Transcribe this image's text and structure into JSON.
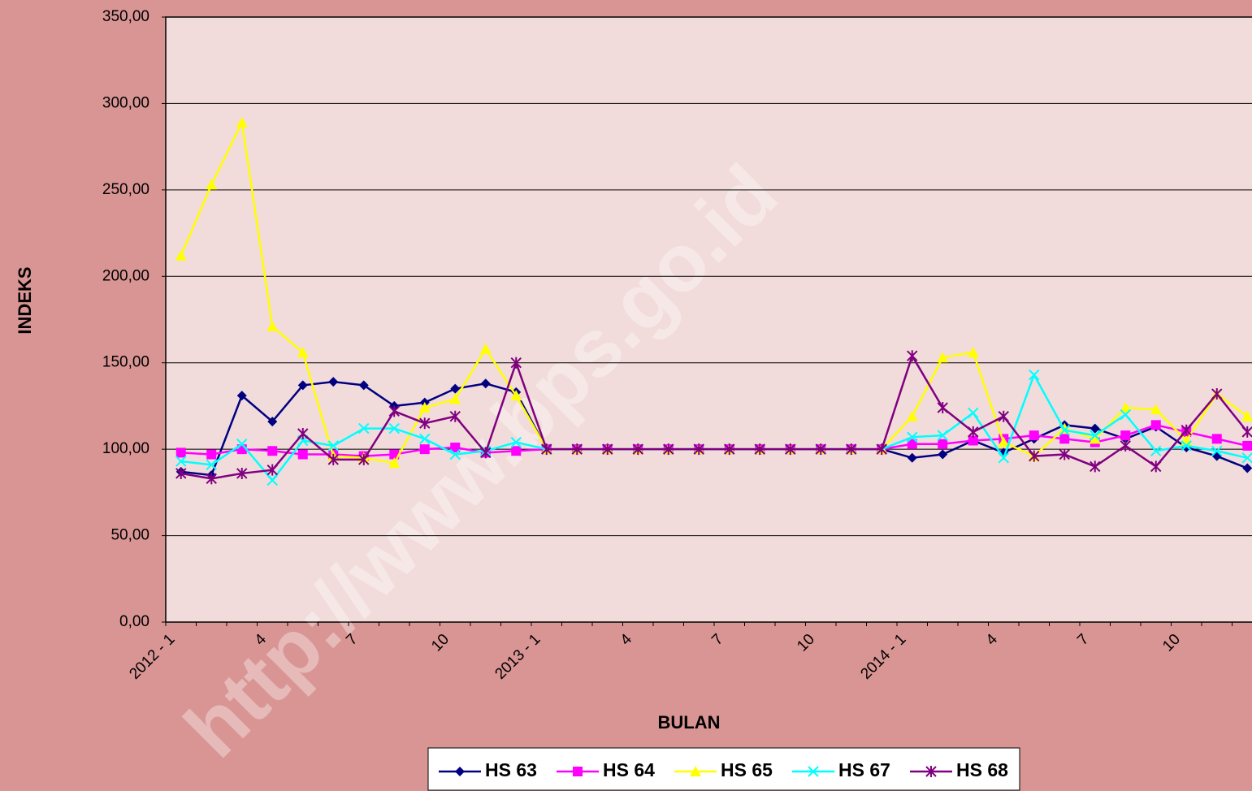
{
  "chart_data": {
    "type": "line",
    "x_label": "BULAN",
    "y_label": "INDEKS",
    "watermark": "http://www.bps.go.id",
    "categories": [
      "2012 - 1",
      null,
      null,
      "4",
      null,
      null,
      "7",
      null,
      null,
      "10",
      null,
      null,
      "2013 - 1",
      null,
      null,
      "4",
      null,
      null,
      "7",
      null,
      null,
      "10",
      null,
      null,
      "2014 - 1",
      null,
      null,
      "4",
      null,
      null,
      "7",
      null,
      null,
      "10",
      null,
      null
    ],
    "ylim": [
      0,
      350
    ],
    "yticks": [
      {
        "value": 0,
        "label": "0,00"
      },
      {
        "value": 50,
        "label": "50,00"
      },
      {
        "value": 100,
        "label": "100,00"
      },
      {
        "value": 150,
        "label": "150,00"
      },
      {
        "value": 200,
        "label": "200,00"
      },
      {
        "value": 250,
        "label": "250,00"
      },
      {
        "value": 300,
        "label": "300,00"
      },
      {
        "value": 350,
        "label": "350,00"
      }
    ],
    "grid": true,
    "legend": "bottom",
    "series": [
      {
        "name": "HS 63",
        "color": "#000080",
        "marker": "diamond",
        "values": [
          87,
          85,
          131,
          116,
          137,
          139,
          137,
          125,
          127,
          135,
          138,
          133,
          100,
          100,
          100,
          100,
          100,
          100,
          100,
          100,
          100,
          100,
          100,
          100,
          95,
          97,
          105,
          98,
          106,
          114,
          112,
          106,
          113,
          101,
          96,
          89
        ]
      },
      {
        "name": "HS 64",
        "color": "#ff00ff",
        "marker": "square",
        "values": [
          98,
          97,
          100,
          99,
          97,
          97,
          96,
          97,
          100,
          101,
          98,
          99,
          100,
          100,
          100,
          100,
          100,
          100,
          100,
          100,
          100,
          100,
          100,
          100,
          103,
          103,
          105,
          106,
          108,
          106,
          104,
          108,
          114,
          110,
          106,
          102
        ]
      },
      {
        "name": "HS 65",
        "color": "#ffff00",
        "marker": "triangle",
        "values": [
          212,
          253,
          289,
          171,
          156,
          96,
          95,
          92,
          124,
          129,
          158,
          131,
          100,
          100,
          100,
          100,
          100,
          100,
          100,
          100,
          100,
          100,
          100,
          100,
          119,
          153,
          156,
          104,
          96,
          112,
          106,
          124,
          123,
          105,
          132,
          119
        ]
      },
      {
        "name": "HS 67",
        "color": "#00ffff",
        "marker": "x",
        "values": [
          93,
          91,
          103,
          82,
          105,
          102,
          112,
          112,
          106,
          97,
          99,
          104,
          100,
          100,
          100,
          100,
          100,
          100,
          100,
          100,
          100,
          100,
          100,
          100,
          107,
          108,
          121,
          95,
          143,
          111,
          108,
          120,
          99,
          102,
          99,
          95
        ]
      },
      {
        "name": "HS 68",
        "color": "#800080",
        "marker": "star",
        "values": [
          86,
          83,
          86,
          88,
          109,
          94,
          94,
          122,
          115,
          119,
          98,
          150,
          100,
          100,
          100,
          100,
          100,
          100,
          100,
          100,
          100,
          100,
          100,
          100,
          154,
          124,
          110,
          119,
          96,
          97,
          90,
          102,
          90,
          111,
          132,
          110
        ]
      }
    ]
  }
}
